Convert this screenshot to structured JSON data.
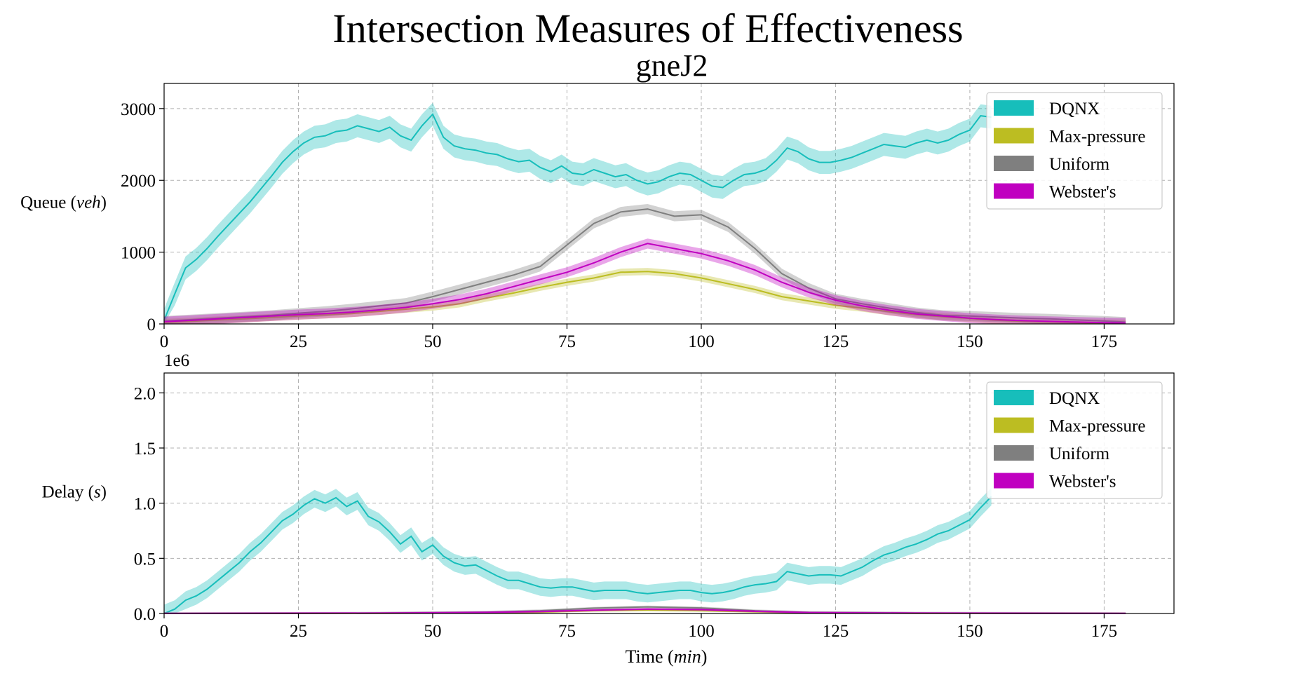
{
  "title": "Intersection Measures of Effectiveness",
  "subtitle": "gneJ2",
  "colors": {
    "DQNX": "#17bebb",
    "Max-pressure": "#bcbd22",
    "Uniform": "#7f7f7f",
    "Webster's": "#c000c0"
  },
  "chart_data": [
    {
      "type": "line",
      "panel": "queue",
      "ylabel": "Queue (veh)",
      "ylabel_main": "Queue",
      "ylabel_unit": "veh",
      "xlabel": "",
      "xlim": [
        0,
        188
      ],
      "ylim": [
        0,
        3350
      ],
      "xticks": [
        0,
        25,
        50,
        75,
        100,
        125,
        150,
        175
      ],
      "xtick_labels": [
        "0",
        "25",
        "50",
        "75",
        "100",
        "125",
        "150",
        "175"
      ],
      "yticks": [
        0,
        1000,
        2000,
        3000
      ],
      "ytick_labels": [
        "0",
        "1000",
        "2000",
        "3000"
      ],
      "grid": true,
      "legend": "top-right",
      "legend_entries": [
        "DQNX",
        "Max-pressure",
        "Uniform",
        "Webster's"
      ],
      "series": [
        {
          "name": "DQNX",
          "band": 160,
          "x": [
            0,
            2,
            4,
            6,
            8,
            10,
            12,
            14,
            16,
            18,
            20,
            22,
            24,
            26,
            28,
            30,
            32,
            34,
            36,
            38,
            40,
            42,
            44,
            46,
            48,
            50,
            52,
            54,
            56,
            58,
            60,
            62,
            64,
            66,
            68,
            70,
            72,
            74,
            76,
            78,
            80,
            82,
            84,
            86,
            88,
            90,
            92,
            94,
            96,
            98,
            100,
            102,
            104,
            106,
            108,
            110,
            112,
            114,
            116,
            118,
            120,
            122,
            124,
            126,
            128,
            130,
            132,
            134,
            136,
            138,
            140,
            142,
            144,
            146,
            148,
            150,
            152,
            154
          ],
          "y": [
            50,
            420,
            780,
            900,
            1050,
            1220,
            1380,
            1540,
            1700,
            1880,
            2060,
            2250,
            2400,
            2520,
            2600,
            2620,
            2680,
            2700,
            2760,
            2720,
            2680,
            2740,
            2620,
            2560,
            2760,
            2920,
            2600,
            2480,
            2440,
            2420,
            2380,
            2360,
            2300,
            2260,
            2280,
            2180,
            2120,
            2200,
            2100,
            2080,
            2150,
            2100,
            2050,
            2080,
            2000,
            1950,
            1980,
            2050,
            2100,
            2080,
            2000,
            1920,
            1900,
            2000,
            2080,
            2100,
            2150,
            2280,
            2450,
            2400,
            2300,
            2250,
            2250,
            2280,
            2320,
            2380,
            2440,
            2500,
            2480,
            2460,
            2520,
            2560,
            2520,
            2560,
            2640,
            2700,
            2900,
            2880
          ]
        },
        {
          "name": "Max-pressure",
          "band": 50,
          "x": [
            0,
            5,
            10,
            15,
            20,
            25,
            30,
            35,
            40,
            45,
            50,
            55,
            60,
            65,
            70,
            75,
            80,
            85,
            90,
            95,
            100,
            105,
            110,
            115,
            120,
            125,
            130,
            135,
            140,
            145,
            150,
            155,
            160,
            165,
            170,
            175,
            179
          ],
          "y": [
            20,
            35,
            55,
            70,
            90,
            110,
            125,
            145,
            175,
            205,
            235,
            280,
            360,
            430,
            510,
            580,
            640,
            720,
            730,
            700,
            640,
            560,
            480,
            380,
            320,
            260,
            220,
            170,
            130,
            100,
            75,
            50,
            35,
            25,
            18,
            12,
            10
          ]
        },
        {
          "name": "Uniform",
          "band": 70,
          "x": [
            0,
            5,
            10,
            15,
            20,
            25,
            30,
            35,
            40,
            45,
            50,
            55,
            60,
            65,
            70,
            75,
            80,
            85,
            90,
            95,
            100,
            105,
            110,
            115,
            120,
            125,
            130,
            135,
            140,
            145,
            150,
            155,
            160,
            165,
            170,
            175,
            179
          ],
          "y": [
            40,
            60,
            80,
            100,
            120,
            150,
            175,
            210,
            250,
            290,
            380,
            480,
            580,
            680,
            800,
            1100,
            1400,
            1560,
            1600,
            1500,
            1520,
            1350,
            1050,
            700,
            500,
            350,
            280,
            220,
            160,
            120,
            110,
            95,
            80,
            70,
            55,
            40,
            25
          ]
        },
        {
          "name": "Webster's",
          "band": 70,
          "x": [
            0,
            5,
            10,
            15,
            20,
            25,
            30,
            35,
            40,
            45,
            50,
            55,
            60,
            65,
            70,
            75,
            80,
            85,
            90,
            95,
            100,
            105,
            110,
            115,
            120,
            125,
            130,
            135,
            140,
            145,
            150,
            155,
            160,
            165,
            170,
            175,
            179
          ],
          "y": [
            30,
            50,
            70,
            90,
            110,
            130,
            145,
            165,
            195,
            230,
            280,
            340,
            420,
            520,
            620,
            720,
            850,
            1000,
            1120,
            1050,
            980,
            880,
            750,
            580,
            440,
            330,
            250,
            190,
            140,
            110,
            80,
            60,
            45,
            35,
            25,
            18,
            12
          ]
        }
      ]
    },
    {
      "type": "line",
      "panel": "delay",
      "ylabel": "Delay (s)",
      "ylabel_main": "Delay",
      "ylabel_unit": "s",
      "xlabel": "Time (min)",
      "xlabel_main": "Time",
      "xlabel_unit": "min",
      "offset_text": "1e6",
      "xlim": [
        0,
        188
      ],
      "ylim": [
        0,
        2.18
      ],
      "xticks": [
        0,
        25,
        50,
        75,
        100,
        125,
        150,
        175
      ],
      "xtick_labels": [
        "0",
        "25",
        "50",
        "75",
        "100",
        "125",
        "150",
        "175"
      ],
      "yticks": [
        0,
        0.5,
        1.0,
        1.5,
        2.0
      ],
      "ytick_labels": [
        "0.0",
        "0.5",
        "1.0",
        "1.5",
        "2.0"
      ],
      "grid": true,
      "legend": "top-right",
      "legend_entries": [
        "DQNX",
        "Max-pressure",
        "Uniform",
        "Webster's"
      ],
      "series": [
        {
          "name": "DQNX",
          "band": 0.08,
          "x": [
            0,
            2,
            4,
            6,
            8,
            10,
            12,
            14,
            16,
            18,
            20,
            22,
            24,
            26,
            28,
            30,
            32,
            34,
            36,
            38,
            40,
            42,
            44,
            46,
            48,
            50,
            52,
            54,
            56,
            58,
            60,
            62,
            64,
            66,
            68,
            70,
            72,
            74,
            76,
            78,
            80,
            82,
            84,
            86,
            88,
            90,
            92,
            94,
            96,
            98,
            100,
            102,
            104,
            106,
            108,
            110,
            112,
            114,
            116,
            118,
            120,
            122,
            124,
            126,
            128,
            130,
            132,
            134,
            136,
            138,
            140,
            142,
            144,
            146,
            148,
            150,
            152,
            154
          ],
          "y": [
            0.0,
            0.04,
            0.12,
            0.16,
            0.22,
            0.3,
            0.38,
            0.46,
            0.56,
            0.64,
            0.74,
            0.84,
            0.9,
            0.98,
            1.04,
            1.0,
            1.05,
            0.97,
            1.02,
            0.88,
            0.83,
            0.74,
            0.63,
            0.7,
            0.56,
            0.62,
            0.52,
            0.46,
            0.43,
            0.44,
            0.39,
            0.34,
            0.3,
            0.3,
            0.27,
            0.24,
            0.23,
            0.24,
            0.24,
            0.22,
            0.2,
            0.21,
            0.21,
            0.21,
            0.19,
            0.18,
            0.19,
            0.2,
            0.21,
            0.21,
            0.19,
            0.18,
            0.19,
            0.21,
            0.24,
            0.26,
            0.27,
            0.29,
            0.38,
            0.36,
            0.34,
            0.35,
            0.35,
            0.34,
            0.38,
            0.42,
            0.48,
            0.53,
            0.56,
            0.6,
            0.63,
            0.67,
            0.72,
            0.75,
            0.8,
            0.85,
            0.96,
            1.06
          ]
        },
        {
          "name": "Max-pressure",
          "band": 0.008,
          "x": [
            0,
            20,
            40,
            60,
            70,
            80,
            90,
            100,
            110,
            120,
            140,
            160,
            179
          ],
          "y": [
            0.0,
            0.0,
            0.002,
            0.006,
            0.012,
            0.025,
            0.03,
            0.025,
            0.015,
            0.006,
            0.002,
            0.001,
            0.0
          ]
        },
        {
          "name": "Uniform",
          "band": 0.012,
          "x": [
            0,
            20,
            40,
            60,
            70,
            80,
            90,
            100,
            110,
            120,
            140,
            160,
            179
          ],
          "y": [
            0.0,
            0.001,
            0.004,
            0.012,
            0.025,
            0.048,
            0.06,
            0.05,
            0.025,
            0.01,
            0.004,
            0.002,
            0.0
          ]
        },
        {
          "name": "Webster's",
          "band": 0.01,
          "x": [
            0,
            20,
            40,
            60,
            70,
            80,
            90,
            100,
            110,
            120,
            140,
            160,
            179
          ],
          "y": [
            0.0,
            0.001,
            0.003,
            0.01,
            0.018,
            0.03,
            0.04,
            0.035,
            0.02,
            0.008,
            0.003,
            0.001,
            0.0
          ]
        }
      ]
    }
  ]
}
